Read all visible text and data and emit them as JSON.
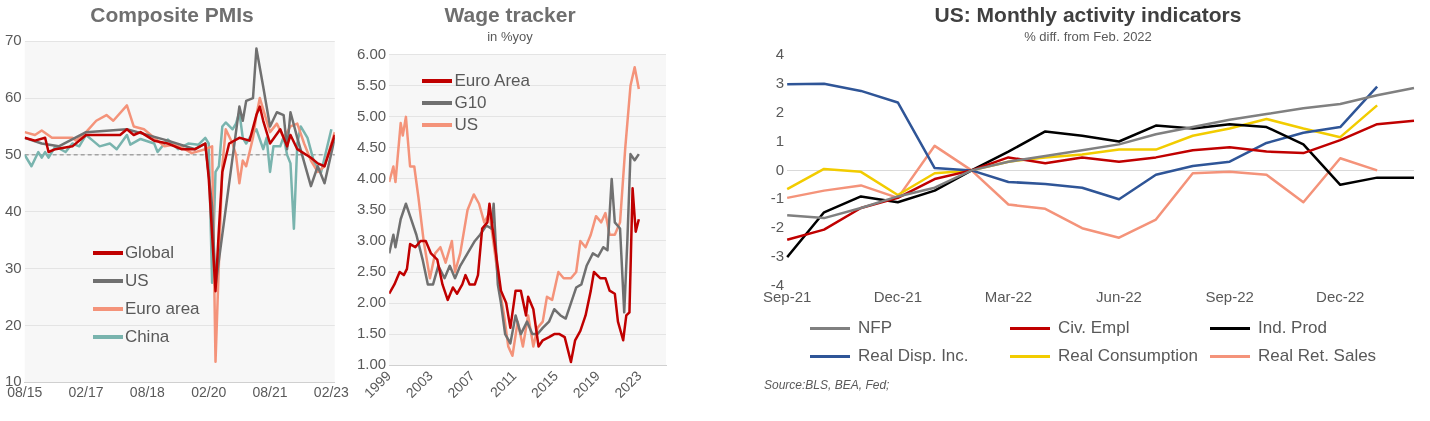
{
  "chart_data": [
    {
      "type": "line",
      "title": "Composite PMIs",
      "xlim": [
        "2015-08",
        "2023-03"
      ],
      "xticks": [
        {
          "value": "2015-08",
          "label": "08/15"
        },
        {
          "value": "2017-02",
          "label": "02/17"
        },
        {
          "value": "2018-08",
          "label": "08/18"
        },
        {
          "value": "2020-02",
          "label": "02/20"
        },
        {
          "value": "2021-08",
          "label": "08/21"
        },
        {
          "value": "2023-02",
          "label": "02/23"
        }
      ],
      "ylim": [
        10,
        70
      ],
      "yticks": [
        10,
        20,
        30,
        40,
        50,
        60,
        70
      ],
      "grid": "y",
      "legend": "bottom left",
      "ref_lines": [
        {
          "axis": "y",
          "value": 50,
          "line_style": "dashed",
          "color": "#7f7f7f"
        }
      ],
      "series": [
        {
          "name": "Global",
          "color": "#c00000",
          "x": [
            "2015-08",
            "2015-11",
            "2016-02",
            "2016-03",
            "2016-05",
            "2016-10",
            "2017-02",
            "2017-12",
            "2018-02",
            "2018-04",
            "2018-06",
            "2018-10",
            "2019-02",
            "2019-06",
            "2019-10",
            "2020-01",
            "2020-02",
            "2020-04",
            "2020-05",
            "2020-06",
            "2020-08",
            "2020-11",
            "2021-02",
            "2021-04",
            "2021-05",
            "2021-06",
            "2021-08",
            "2021-11",
            "2022-01",
            "2022-02",
            "2022-04",
            "2022-08",
            "2022-10",
            "2022-12",
            "2023-03"
          ],
          "values": [
            53,
            52.5,
            53,
            50.5,
            51,
            51.5,
            53.5,
            53.5,
            54.5,
            53.5,
            54,
            52.5,
            52,
            51,
            51,
            52,
            46,
            26,
            37,
            47,
            52,
            53,
            52.5,
            57,
            58.5,
            56,
            52,
            54.5,
            51.5,
            53.5,
            51,
            49.5,
            48.5,
            48,
            53.5
          ]
        },
        {
          "name": "US",
          "color": "#707070",
          "x": [
            "2015-08",
            "2016-01",
            "2016-06",
            "2017-02",
            "2018-02",
            "2019-02",
            "2019-10",
            "2020-01",
            "2020-03",
            "2020-04",
            "2020-11",
            "2020-12",
            "2021-01",
            "2021-03",
            "2021-04",
            "2021-06",
            "2021-08",
            "2021-10",
            "2021-12",
            "2022-01",
            "2022-02",
            "2022-04",
            "2022-08",
            "2022-10",
            "2022-12",
            "2023-03"
          ],
          "values": [
            53,
            52,
            51.5,
            54,
            54.5,
            52.5,
            51,
            52,
            41,
            27,
            58.5,
            56,
            59.5,
            60,
            68.7,
            62,
            55,
            57.5,
            57,
            51,
            57.5,
            53,
            44.5,
            48,
            45,
            53
          ]
        },
        {
          "name": "Euro area",
          "color": "#f4937a",
          "x": [
            "2015-08",
            "2015-11",
            "2016-01",
            "2016-04",
            "2016-10",
            "2016-11",
            "2017-02",
            "2017-05",
            "2017-08",
            "2017-10",
            "2018-02",
            "2018-04",
            "2018-07",
            "2018-10",
            "2019-01",
            "2019-04",
            "2019-07",
            "2019-09",
            "2020-01",
            "2020-03",
            "2020-04",
            "2020-05",
            "2020-06",
            "2020-07",
            "2020-09",
            "2020-10",
            "2020-11",
            "2020-12",
            "2021-01",
            "2021-03",
            "2021-04",
            "2021-05",
            "2021-06",
            "2021-08",
            "2021-10",
            "2021-12",
            "2022-02",
            "2022-04",
            "2022-06",
            "2022-08",
            "2022-10",
            "2022-12",
            "2023-03"
          ],
          "values": [
            54,
            53.5,
            54.3,
            53,
            53,
            52.5,
            54,
            56,
            57,
            56,
            58.7,
            55,
            54.5,
            53,
            51.5,
            51.8,
            51,
            50.3,
            51,
            51.5,
            13.6,
            31,
            48,
            54.5,
            52,
            50,
            45,
            49,
            48,
            53,
            57,
            60,
            58,
            54,
            55.5,
            53,
            55,
            55.5,
            52,
            49,
            47,
            48,
            54
          ]
        },
        {
          "name": "China",
          "color": "#79b4ae",
          "x": [
            "2015-08",
            "2015-10",
            "2015-12",
            "2016-01",
            "2016-02",
            "2016-03",
            "2016-05",
            "2016-08",
            "2016-10",
            "2016-12",
            "2017-02",
            "2017-04",
            "2017-06",
            "2017-09",
            "2017-11",
            "2018-02",
            "2018-03",
            "2018-06",
            "2018-10",
            "2018-11",
            "2019-02",
            "2019-05",
            "2019-08",
            "2019-11",
            "2020-01",
            "2020-02",
            "2020-03",
            "2020-04",
            "2020-05",
            "2020-06",
            "2020-07",
            "2020-09",
            "2020-10",
            "2020-11",
            "2020-12",
            "2021-01",
            "2021-02",
            "2021-04",
            "2021-06",
            "2021-07",
            "2021-08",
            "2021-09",
            "2021-11",
            "2021-12",
            "2022-01",
            "2022-02",
            "2022-03",
            "2022-04",
            "2022-05",
            "2022-07",
            "2022-09",
            "2022-11",
            "2023-02"
          ],
          "values": [
            50,
            48,
            50.5,
            49.5,
            50.5,
            49.5,
            51.5,
            50.5,
            52,
            51.5,
            53.5,
            52.5,
            51.5,
            52,
            51,
            53.5,
            51.8,
            52.8,
            52,
            50.5,
            52.7,
            51,
            52,
            51.8,
            53,
            52,
            27.5,
            47,
            48,
            55,
            55.7,
            54.5,
            55.5,
            57.5,
            53,
            52,
            53,
            54.5,
            51,
            53,
            47,
            51.5,
            51.5,
            53.2,
            50,
            48.5,
            37,
            52,
            55,
            53,
            48.5,
            47,
            54.5
          ]
        }
      ]
    },
    {
      "type": "line",
      "title": "Wage tracker",
      "subtitle": "in %yoy",
      "xlim": [
        1999,
        2025.5
      ],
      "xticks": [
        1999,
        2003,
        2007,
        2011,
        2015,
        2019,
        2023
      ],
      "ylim": [
        1,
        6
      ],
      "yticks": [
        {
          "value": 1,
          "label": "1.00"
        },
        {
          "value": 1.5,
          "label": "1.50"
        },
        {
          "value": 2,
          "label": "2.00"
        },
        {
          "value": 2.5,
          "label": "2.50"
        },
        {
          "value": 3,
          "label": "3.00"
        },
        {
          "value": 3.5,
          "label": "3.50"
        },
        {
          "value": 4,
          "label": "4.00"
        },
        {
          "value": 4.5,
          "label": "4.50"
        },
        {
          "value": 5,
          "label": "5.00"
        },
        {
          "value": 5.5,
          "label": "5.50"
        },
        {
          "value": 6,
          "label": "6.00"
        }
      ],
      "grid": "y",
      "legend": "top left",
      "series": [
        {
          "name": "Euro Area",
          "color": "#c00000",
          "x": [
            1999.0,
            1999.5,
            2000.0,
            2000.4,
            2000.7,
            2001.0,
            2001.5,
            2002.0,
            2002.5,
            2003.0,
            2003.6,
            2004.1,
            2004.6,
            2005.1,
            2005.5,
            2006.0,
            2006.3,
            2006.7,
            2007.2,
            2007.5,
            2007.9,
            2008.4,
            2008.6,
            2008.9,
            2009.3,
            2009.7,
            2010.2,
            2010.6,
            2011.1,
            2011.6,
            2012.1,
            2012.3,
            2012.8,
            2013.3,
            2013.7,
            2014.3,
            2014.8,
            2015.3,
            2015.8,
            2016.4,
            2016.8,
            2017.3,
            2017.8,
            2018.3,
            2018.6,
            2019.2,
            2019.7,
            2020.1,
            2020.6,
            2020.9,
            2021.4,
            2021.7,
            2022.0,
            2022.3,
            2022.6,
            2022.9
          ],
          "values": [
            2.15,
            2.3,
            2.5,
            2.45,
            2.55,
            2.95,
            2.9,
            3.0,
            3.0,
            2.8,
            2.7,
            2.3,
            2.05,
            2.25,
            2.15,
            2.3,
            2.45,
            2.3,
            2.3,
            2.45,
            3.2,
            3.3,
            3.6,
            3.2,
            2.7,
            2.2,
            2.0,
            1.6,
            2.2,
            2.2,
            1.8,
            2.1,
            1.9,
            1.3,
            1.4,
            1.45,
            1.5,
            1.5,
            1.45,
            1.05,
            1.4,
            1.55,
            1.8,
            2.2,
            2.5,
            2.4,
            2.4,
            2.2,
            2.15,
            1.7,
            1.4,
            1.8,
            1.85,
            3.85,
            3.15,
            3.35
          ]
        },
        {
          "name": "G10",
          "color": "#707070",
          "x": [
            1999.0,
            1999.4,
            1999.6,
            2000.1,
            2000.6,
            2001.0,
            2001.6,
            2002.2,
            2002.7,
            2003.2,
            2003.7,
            2004.3,
            2004.8,
            2005.3,
            2005.8,
            2006.5,
            2007.2,
            2007.7,
            2008.3,
            2008.8,
            2009.0,
            2009.4,
            2009.7,
            2010.1,
            2010.6,
            2011.1,
            2011.6,
            2012.2,
            2012.7,
            2013.2,
            2013.7,
            2014.3,
            2014.8,
            2015.4,
            2015.9,
            2016.4,
            2016.9,
            2017.4,
            2017.9,
            2018.5,
            2019.0,
            2019.5,
            2019.9,
            2020.3,
            2020.6,
            2021.1,
            2021.5,
            2021.8,
            2022.1,
            2022.5,
            2022.9
          ],
          "values": [
            2.8,
            3.1,
            2.9,
            3.35,
            3.6,
            3.4,
            3.1,
            2.7,
            2.3,
            2.3,
            2.6,
            2.4,
            2.6,
            2.4,
            2.6,
            2.8,
            3.0,
            3.1,
            3.25,
            3.2,
            3.6,
            2.3,
            2.0,
            1.5,
            1.35,
            1.8,
            1.5,
            1.7,
            1.5,
            1.5,
            1.6,
            1.7,
            1.9,
            1.8,
            1.75,
            2.0,
            2.25,
            2.3,
            2.6,
            2.8,
            2.75,
            2.9,
            2.85,
            4.0,
            3.3,
            3.2,
            1.85,
            3.0,
            4.4,
            4.3,
            4.4
          ]
        },
        {
          "name": "US",
          "color": "#f4937a",
          "x": [
            1999.0,
            1999.4,
            1999.6,
            2000.1,
            2000.3,
            2000.6,
            2001.0,
            2001.4,
            2001.8,
            2002.3,
            2002.9,
            2003.4,
            2003.9,
            2004.4,
            2005.0,
            2005.3,
            2005.8,
            2006.5,
            2007.1,
            2007.6,
            2008.1,
            2008.6,
            2009.2,
            2009.5,
            2010.0,
            2010.4,
            2010.8,
            2011.3,
            2011.8,
            2012.3,
            2012.8,
            2013.2,
            2013.7,
            2014.1,
            2014.6,
            2015.2,
            2015.7,
            2016.4,
            2016.9,
            2017.3,
            2017.8,
            2018.3,
            2018.8,
            2019.3,
            2019.7,
            2020.1,
            2020.6,
            2021.1,
            2021.6,
            2022.1,
            2022.5,
            2022.9
          ],
          "values": [
            3.95,
            4.2,
            3.95,
            4.9,
            4.7,
            5.0,
            4.2,
            4.2,
            3.7,
            3.0,
            2.4,
            2.8,
            2.9,
            2.65,
            3.0,
            2.5,
            2.8,
            3.5,
            3.75,
            3.6,
            3.3,
            3.45,
            2.7,
            2.3,
            1.8,
            1.3,
            1.15,
            1.7,
            1.3,
            1.8,
            1.3,
            1.6,
            1.7,
            2.1,
            2.05,
            2.5,
            2.4,
            2.4,
            2.5,
            3.0,
            2.9,
            3.1,
            3.4,
            3.3,
            3.45,
            3.1,
            3.1,
            3.3,
            4.5,
            5.5,
            5.8,
            5.45
          ]
        }
      ]
    },
    {
      "type": "line",
      "title": "US: Monthly activity indicators",
      "subtitle": "% diff. from Feb. 2022",
      "categories": [
        "Sep-21",
        null,
        null,
        "Dec-21",
        null,
        null,
        "Mar-22",
        null,
        null,
        "Jun-22",
        null,
        null,
        "Sep-22",
        null,
        null,
        "Dec-22",
        null,
        null
      ],
      "ylim": [
        -4,
        4
      ],
      "yticks": [
        -4,
        -3,
        -2,
        -1,
        0,
        1,
        2,
        3,
        4
      ],
      "legend": "bottom",
      "annotations": [
        "Source:BLS, BEA, Fed;"
      ],
      "series": [
        {
          "name": "NFP",
          "color": "#808080",
          "values": [
            -1.55,
            -1.65,
            -1.3,
            -0.9,
            -0.6,
            0,
            0.3,
            0.5,
            0.7,
            0.9,
            1.25,
            1.5,
            1.75,
            1.95,
            2.15,
            2.3,
            2.6,
            2.85
          ]
        },
        {
          "name": "Civ. Empl",
          "color": "#c00000",
          "values": [
            -2.4,
            -2.05,
            -1.3,
            -0.95,
            -0.3,
            0,
            0.45,
            0.25,
            0.45,
            0.3,
            0.45,
            0.7,
            0.8,
            0.65,
            0.6,
            1.05,
            1.6,
            1.72
          ]
        },
        {
          "name": "Ind. Prod",
          "color": "#000000",
          "values": [
            -3.0,
            -1.45,
            -0.9,
            -1.1,
            -0.7,
            0,
            0.65,
            1.35,
            1.2,
            1.0,
            1.55,
            1.45,
            1.6,
            1.5,
            0.9,
            -0.5,
            -0.25,
            -0.25
          ]
        },
        {
          "name": "Real Disp. Inc.",
          "color": "#2f5597",
          "values": [
            2.98,
            3.0,
            2.75,
            2.35,
            0.08,
            0,
            -0.4,
            -0.47,
            -0.6,
            -1.0,
            -0.15,
            0.15,
            0.3,
            0.95,
            1.3,
            1.5,
            2.9,
            null
          ]
        },
        {
          "name": "Real Consumption",
          "color": "#f2cc00",
          "values": [
            -0.65,
            0.05,
            -0.05,
            -0.85,
            -0.1,
            0,
            0.3,
            0.45,
            0.55,
            0.72,
            0.72,
            1.2,
            1.45,
            1.78,
            1.45,
            1.15,
            2.25,
            null
          ]
        },
        {
          "name": "Real Ret. Sales",
          "color": "#f4937a",
          "values": [
            -0.95,
            -0.7,
            -0.52,
            -0.95,
            0.85,
            0,
            -1.18,
            -1.33,
            -2.0,
            -2.33,
            -1.7,
            -0.1,
            -0.05,
            -0.15,
            -1.1,
            0.42,
            0,
            null
          ]
        }
      ]
    }
  ]
}
